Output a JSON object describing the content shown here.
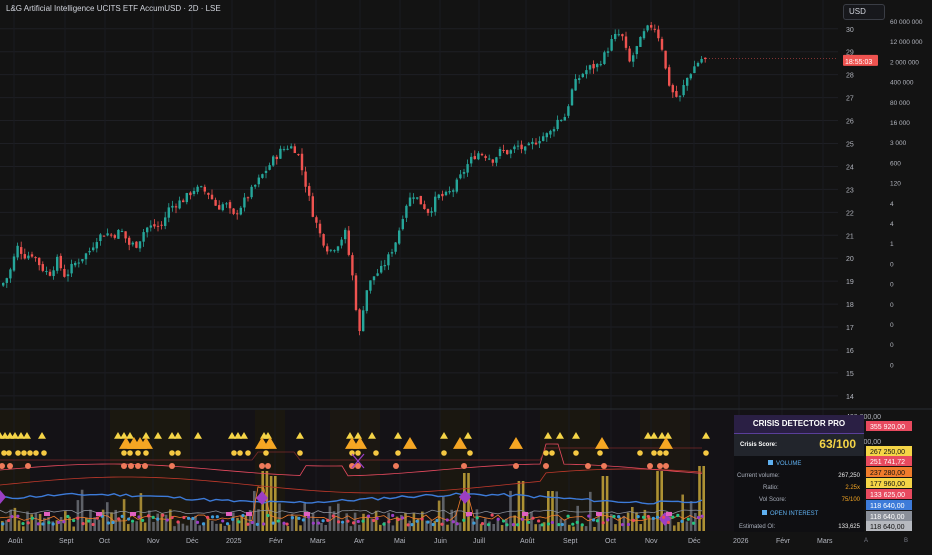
{
  "header": {
    "title": "L&G Artificial Intelligence UCITS ETF AccumUSD · 2D · LSE",
    "currency": "USD",
    "countdown": "18:55:03"
  },
  "chart_data": [
    {
      "type": "candlestick",
      "title": "L&G Artificial Intelligence UCITS ETF AccumUSD · 2D · LSE",
      "price_axis": {
        "ticks": [
          30,
          29,
          28,
          27,
          26,
          25,
          24,
          23,
          22,
          21,
          20,
          19,
          18,
          17,
          16,
          15,
          14
        ],
        "range": [
          13.5,
          30.9
        ]
      },
      "volume_axis_labels": [
        "60 000 000",
        "12 000 000",
        "2 000 000",
        "400 000",
        "80 000",
        "16 000",
        "3 000",
        "600",
        "120",
        "4",
        "4",
        "1",
        "0",
        "0",
        "0",
        "0",
        "0",
        "0"
      ],
      "x_axis_labels": [
        "Août",
        "Sept",
        "Oct",
        "Nov",
        "Déc",
        "2025",
        "Févr",
        "Mars",
        "Avr",
        "Mai",
        "Juin",
        "Juill",
        "Août",
        "Sept",
        "Oct",
        "Nov",
        "Déc",
        "2026",
        "Févr",
        "Mars"
      ],
      "close_path": [
        [
          0,
          18.8
        ],
        [
          8,
          19.3
        ],
        [
          16,
          20.5
        ],
        [
          24,
          20.1
        ],
        [
          32,
          20.2
        ],
        [
          40,
          19.6
        ],
        [
          48,
          19.3
        ],
        [
          56,
          19.9
        ],
        [
          64,
          19.2
        ],
        [
          72,
          19.7
        ],
        [
          80,
          20.0
        ],
        [
          88,
          20.3
        ],
        [
          96,
          20.9
        ],
        [
          104,
          21.1
        ],
        [
          112,
          21.0
        ],
        [
          120,
          21.2
        ],
        [
          128,
          20.6
        ],
        [
          136,
          20.6
        ],
        [
          144,
          21.3
        ],
        [
          152,
          21.4
        ],
        [
          160,
          21.4
        ],
        [
          168,
          22.2
        ],
        [
          176,
          22.4
        ],
        [
          184,
          22.6
        ],
        [
          192,
          23.0
        ],
        [
          200,
          23.0
        ],
        [
          208,
          22.8
        ],
        [
          216,
          22.2
        ],
        [
          224,
          22.4
        ],
        [
          232,
          21.8
        ],
        [
          240,
          22.3
        ],
        [
          248,
          22.8
        ],
        [
          256,
          23.3
        ],
        [
          264,
          23.8
        ],
        [
          272,
          24.3
        ],
        [
          280,
          24.7
        ],
        [
          288,
          24.9
        ],
        [
          296,
          24.7
        ],
        [
          304,
          23.3
        ],
        [
          312,
          21.9
        ],
        [
          320,
          20.9
        ],
        [
          328,
          20.3
        ],
        [
          336,
          20.6
        ],
        [
          344,
          21.1
        ],
        [
          352,
          19.0
        ],
        [
          358,
          16.6
        ],
        [
          364,
          18.5
        ],
        [
          372,
          19.2
        ],
        [
          380,
          19.5
        ],
        [
          388,
          20.1
        ],
        [
          396,
          20.9
        ],
        [
          404,
          22.3
        ],
        [
          412,
          22.8
        ],
        [
          420,
          22.4
        ],
        [
          428,
          22.0
        ],
        [
          436,
          22.7
        ],
        [
          444,
          22.7
        ],
        [
          452,
          23.0
        ],
        [
          460,
          23.6
        ],
        [
          468,
          24.2
        ],
        [
          476,
          24.6
        ],
        [
          484,
          24.5
        ],
        [
          492,
          24.3
        ],
        [
          500,
          24.7
        ],
        [
          508,
          24.6
        ],
        [
          516,
          24.9
        ],
        [
          524,
          24.7
        ],
        [
          532,
          25.0
        ],
        [
          540,
          25.3
        ],
        [
          548,
          25.4
        ],
        [
          556,
          26.0
        ],
        [
          564,
          26.2
        ],
        [
          572,
          27.5
        ],
        [
          580,
          28.0
        ],
        [
          588,
          28.3
        ],
        [
          596,
          28.4
        ],
        [
          604,
          28.9
        ],
        [
          612,
          29.6
        ],
        [
          620,
          29.8
        ],
        [
          628,
          28.5
        ],
        [
          636,
          29.2
        ],
        [
          644,
          29.9
        ],
        [
          652,
          30.2
        ],
        [
          660,
          29.4
        ],
        [
          664,
          28.3
        ],
        [
          668,
          27.6
        ],
        [
          672,
          27.2
        ],
        [
          678,
          26.9
        ],
        [
          684,
          27.7
        ],
        [
          692,
          28.3
        ],
        [
          700,
          28.7
        ],
        [
          706,
          28.6
        ]
      ]
    },
    {
      "type": "indicator",
      "title": "CRISIS DETECTOR PRO",
      "axis_labels": [
        "400 000,00",
        "300 000,00"
      ],
      "value_tags": [
        {
          "label": "355 920,00",
          "color": "#e84a5f"
        },
        {
          "label": "267 250,00",
          "color": "#f5d547"
        },
        {
          "label": "251 741,72",
          "color": "#e84a5f"
        },
        {
          "label": "237 280,00",
          "color": "#f07c2c"
        },
        {
          "label": "177 960,00",
          "color": "#f5d547"
        },
        {
          "label": "133 625,00",
          "color": "#e84a5f"
        },
        {
          "label": "118 640,00",
          "color": "#3d7bd9"
        },
        {
          "label": "118 640,00",
          "color": "#8a8f99"
        },
        {
          "label": "118 640,00",
          "color": "#b6b9bf"
        }
      ]
    }
  ],
  "crisis_panel": {
    "title": "CRISIS DETECTOR PRO",
    "score_label": "Crisis Score:",
    "score_value": "63/100",
    "volume_header": "VOLUME",
    "current_volume_label": "Current volume:",
    "current_volume_value": "267,250",
    "ratio_label": "Ratio:",
    "ratio_value": "2.25x",
    "vol_score_label": "Vol Score:",
    "vol_score_value": "75/100",
    "oi_header": "OPEN INTEREST",
    "estimated_oi_label": "Estimated OI:",
    "estimated_oi_value": "133,625"
  },
  "footer": {
    "btn_a": "A",
    "btn_b": "B"
  },
  "colors": {
    "up": "#26a69a",
    "down": "#ef5350",
    "bg": "#131313",
    "grid": "#1e1f24",
    "panel_accent": "#f5d547"
  }
}
